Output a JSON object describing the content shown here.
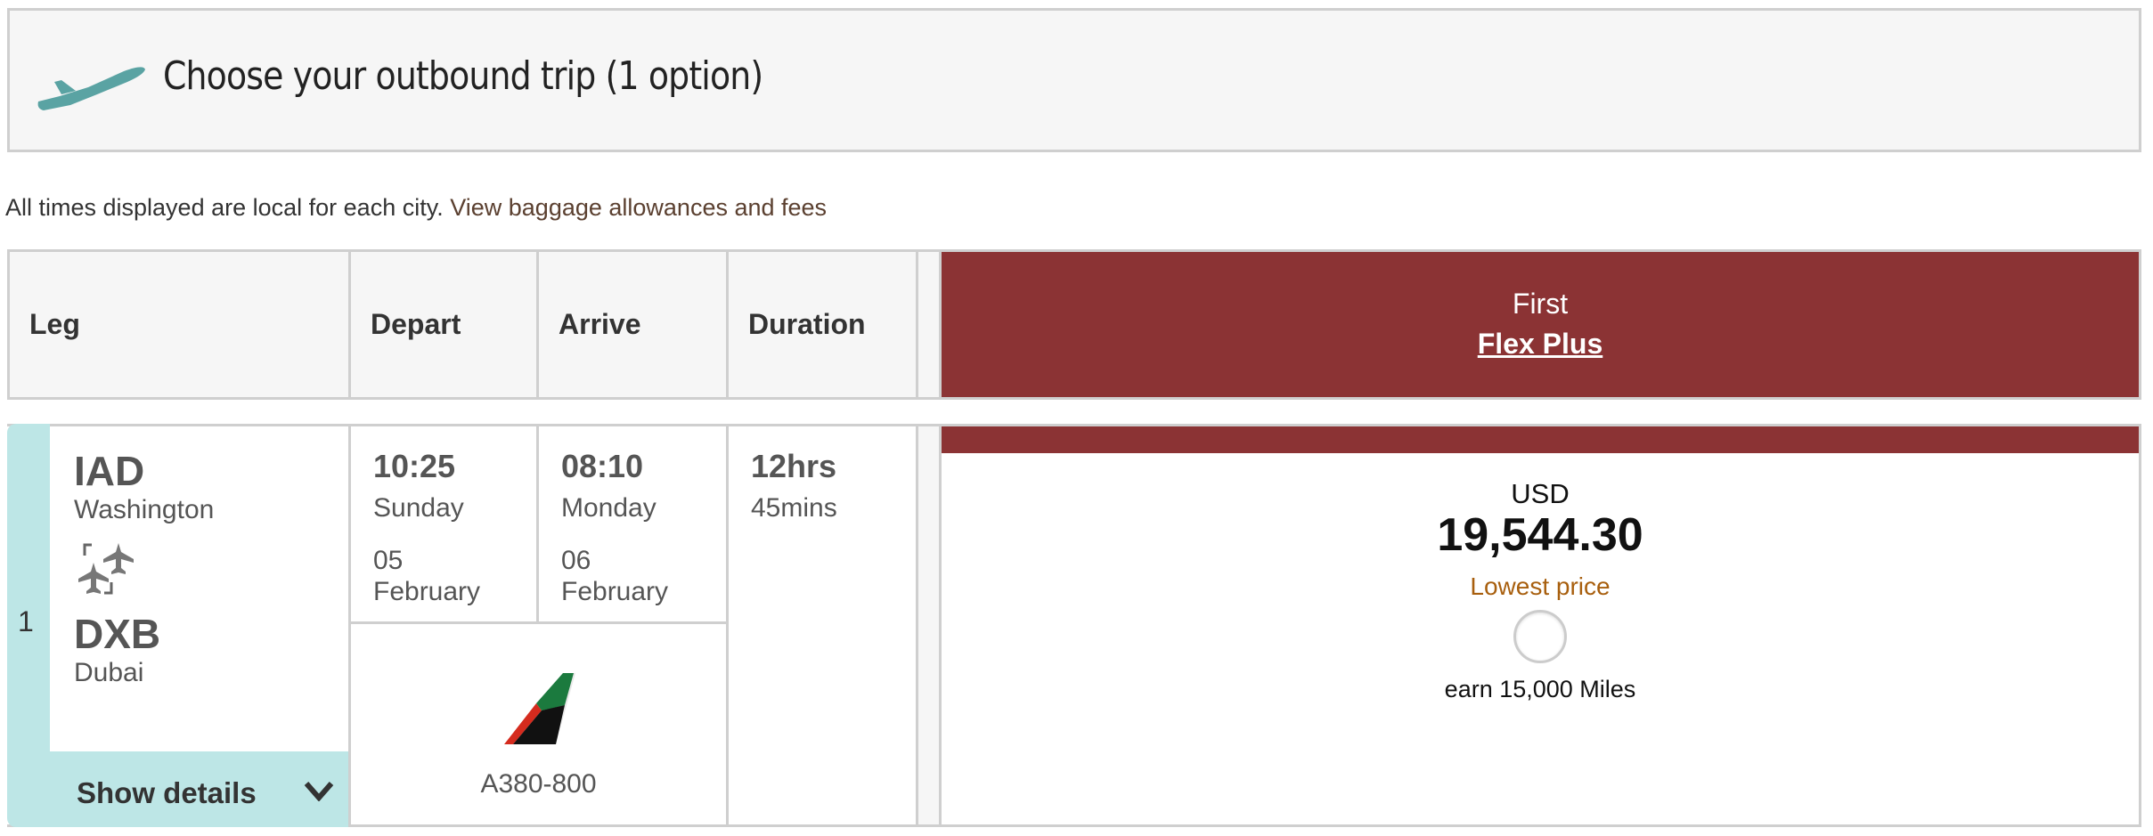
{
  "header": {
    "title": "Choose your outbound trip (1 option)",
    "icon": "plane-takeoff-icon"
  },
  "note": {
    "text": "All times displayed are local for each city.",
    "link": "View baggage allowances and fees"
  },
  "table": {
    "columns": [
      "Leg",
      "Depart",
      "Arrive",
      "Duration"
    ],
    "fare": {
      "cabin": "First",
      "name": "Flex Plus",
      "color": "#8b3334"
    }
  },
  "row": {
    "leg_number": "1",
    "origin": {
      "code": "IAD",
      "city": "Washington"
    },
    "destination": {
      "code": "DXB",
      "city": "Dubai"
    },
    "connection_icon": "flight-connection-icon",
    "show_details": "Show details",
    "depart": {
      "time": "10:25",
      "day": "Sunday",
      "date_day": "05",
      "date_month": "February"
    },
    "arrive": {
      "time": "08:10",
      "day": "Monday",
      "date_day": "06",
      "date_month": "February"
    },
    "duration": {
      "hours": "12hrs",
      "mins": "45mins"
    },
    "aircraft": "A380-800",
    "airline_logo": "emirates-tail-logo",
    "price": {
      "currency": "USD",
      "amount": "19,544.30",
      "tag": "Lowest price",
      "miles": "earn 15,000 Miles",
      "tag_color": "#a85f0e",
      "selected": false
    }
  }
}
